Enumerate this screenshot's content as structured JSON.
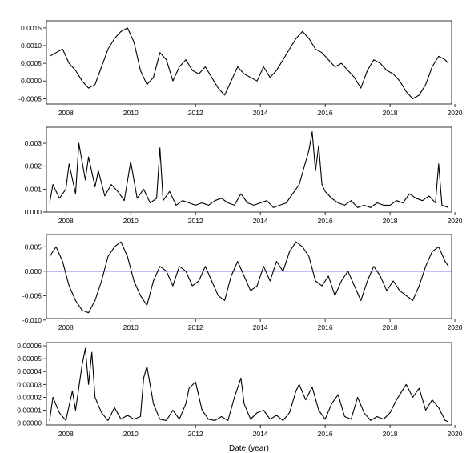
{
  "chart_data": [
    {
      "type": "line",
      "xlim": [
        2007.4,
        2019.9
      ],
      "ylim": [
        -0.00065,
        0.0017
      ],
      "x_ticks": [
        "2008",
        "2010",
        "2012",
        "2014",
        "2016",
        "2018",
        "2020"
      ],
      "y_ticks": [
        "-0.0005",
        "0.0000",
        "0.0005",
        "0.0010",
        "0.0015"
      ],
      "baseline": null,
      "series": [
        {
          "x": [
            2007.5,
            2007.7,
            2007.9,
            2008.1,
            2008.3,
            2008.5,
            2008.7,
            2008.9,
            2009.1,
            2009.3,
            2009.5,
            2009.7,
            2009.9,
            2010.1,
            2010.3,
            2010.5,
            2010.7,
            2010.9,
            2011.1,
            2011.3,
            2011.5,
            2011.7,
            2011.9,
            2012.1,
            2012.3,
            2012.5,
            2012.7,
            2012.9,
            2013.1,
            2013.3,
            2013.5,
            2013.7,
            2013.9,
            2014.1,
            2014.3,
            2014.5,
            2014.7,
            2014.9,
            2015.1,
            2015.3,
            2015.5,
            2015.7,
            2015.9,
            2016.1,
            2016.3,
            2016.5,
            2016.7,
            2016.9,
            2017.1,
            2017.3,
            2017.5,
            2017.7,
            2017.9,
            2018.1,
            2018.3,
            2018.5,
            2018.7,
            2018.9,
            2019.1,
            2019.3,
            2019.5,
            2019.7,
            2019.8
          ],
          "values": [
            0.0007,
            0.0008,
            0.0009,
            0.0005,
            0.0003,
            0.0,
            -0.0002,
            -0.0001,
            0.0004,
            0.0009,
            0.0012,
            0.0014,
            0.0015,
            0.0011,
            0.0003,
            -0.0001,
            0.0001,
            0.0008,
            0.0006,
            0.0,
            0.0004,
            0.0006,
            0.0003,
            0.0002,
            0.0004,
            0.0001,
            -0.0002,
            -0.0004,
            0.0,
            0.0004,
            0.0002,
            0.0001,
            0.0,
            0.0004,
            0.0001,
            0.0003,
            0.0006,
            0.0009,
            0.0012,
            0.0014,
            0.0012,
            0.0009,
            0.0008,
            0.0006,
            0.0004,
            0.0005,
            0.0003,
            0.0001,
            -0.0002,
            0.0003,
            0.0006,
            0.0005,
            0.0003,
            0.0002,
            0.0,
            -0.0003,
            -0.0005,
            -0.0004,
            -0.0001,
            0.0004,
            0.0007,
            0.0006,
            0.0005
          ]
        }
      ]
    },
    {
      "type": "line",
      "xlim": [
        2007.4,
        2019.9
      ],
      "ylim": [
        0.0,
        0.0037
      ],
      "x_ticks": [
        "2008",
        "2010",
        "2012",
        "2014",
        "2016",
        "2018",
        "2020"
      ],
      "y_ticks": [
        "0.000",
        "0.001",
        "0.002",
        "0.003"
      ],
      "baseline": null,
      "series": [
        {
          "x": [
            2007.5,
            2007.6,
            2007.8,
            2008.0,
            2008.1,
            2008.3,
            2008.4,
            2008.6,
            2008.7,
            2008.9,
            2009.0,
            2009.2,
            2009.4,
            2009.6,
            2009.8,
            2010.0,
            2010.2,
            2010.4,
            2010.6,
            2010.8,
            2010.9,
            2011.0,
            2011.2,
            2011.4,
            2011.6,
            2011.8,
            2012.0,
            2012.2,
            2012.4,
            2012.6,
            2012.8,
            2013.0,
            2013.2,
            2013.4,
            2013.6,
            2013.8,
            2014.0,
            2014.2,
            2014.4,
            2014.6,
            2014.8,
            2015.0,
            2015.2,
            2015.4,
            2015.5,
            2015.6,
            2015.7,
            2015.8,
            2015.9,
            2016.0,
            2016.2,
            2016.4,
            2016.6,
            2016.8,
            2017.0,
            2017.2,
            2017.4,
            2017.6,
            2017.8,
            2018.0,
            2018.2,
            2018.4,
            2018.6,
            2018.8,
            2019.0,
            2019.2,
            2019.4,
            2019.5,
            2019.6,
            2019.8
          ],
          "values": [
            0.0004,
            0.0012,
            0.0006,
            0.001,
            0.0021,
            0.0008,
            0.003,
            0.0014,
            0.0024,
            0.0011,
            0.0018,
            0.0007,
            0.0012,
            0.0009,
            0.0005,
            0.0022,
            0.0006,
            0.001,
            0.0004,
            0.0006,
            0.0028,
            0.0005,
            0.0009,
            0.0003,
            0.0005,
            0.0004,
            0.0003,
            0.0004,
            0.0003,
            0.0005,
            0.0006,
            0.0004,
            0.0003,
            0.0008,
            0.0004,
            0.0003,
            0.0004,
            0.0005,
            0.0002,
            0.0003,
            0.0004,
            0.0008,
            0.0012,
            0.0022,
            0.0027,
            0.0035,
            0.0018,
            0.0029,
            0.0012,
            0.0009,
            0.0006,
            0.0004,
            0.0003,
            0.0005,
            0.0002,
            0.0003,
            0.0002,
            0.0004,
            0.0003,
            0.0003,
            0.0005,
            0.0004,
            0.0008,
            0.0006,
            0.0005,
            0.0007,
            0.0004,
            0.0021,
            0.0003,
            0.0002
          ]
        }
      ]
    },
    {
      "type": "line",
      "xlim": [
        2007.4,
        2019.9
      ],
      "ylim": [
        -0.0097,
        0.0075
      ],
      "x_ticks": [
        "2008",
        "2010",
        "2012",
        "2014",
        "2016",
        "2018",
        "2020"
      ],
      "y_ticks": [
        "-0.010",
        "-0.005",
        "0.000",
        "0.005"
      ],
      "baseline": 0.0,
      "baseline_color": "#0000cc",
      "series": [
        {
          "x": [
            2007.5,
            2007.7,
            2007.9,
            2008.1,
            2008.3,
            2008.5,
            2008.7,
            2008.9,
            2009.1,
            2009.3,
            2009.5,
            2009.7,
            2009.9,
            2010.1,
            2010.3,
            2010.5,
            2010.7,
            2010.9,
            2011.1,
            2011.3,
            2011.5,
            2011.7,
            2011.9,
            2012.1,
            2012.3,
            2012.5,
            2012.7,
            2012.9,
            2013.1,
            2013.3,
            2013.5,
            2013.7,
            2013.9,
            2014.1,
            2014.3,
            2014.5,
            2014.7,
            2014.9,
            2015.1,
            2015.3,
            2015.5,
            2015.7,
            2015.9,
            2016.1,
            2016.3,
            2016.5,
            2016.7,
            2016.9,
            2017.1,
            2017.3,
            2017.5,
            2017.7,
            2017.9,
            2018.1,
            2018.3,
            2018.5,
            2018.7,
            2018.9,
            2019.1,
            2019.3,
            2019.5,
            2019.7,
            2019.8
          ],
          "values": [
            0.003,
            0.005,
            0.002,
            -0.003,
            -0.006,
            -0.008,
            -0.0085,
            -0.006,
            -0.002,
            0.003,
            0.005,
            0.006,
            0.003,
            -0.002,
            -0.005,
            -0.007,
            -0.002,
            0.001,
            0.0,
            -0.003,
            0.001,
            0.0,
            -0.003,
            -0.002,
            0.001,
            -0.002,
            -0.005,
            -0.006,
            -0.001,
            0.002,
            -0.001,
            -0.004,
            -0.003,
            0.001,
            -0.002,
            0.002,
            0.0,
            0.004,
            0.006,
            0.005,
            0.003,
            -0.002,
            -0.003,
            -0.001,
            -0.005,
            -0.002,
            0.0,
            -0.003,
            -0.006,
            -0.002,
            0.001,
            -0.001,
            -0.004,
            -0.002,
            -0.004,
            -0.005,
            -0.006,
            -0.003,
            0.001,
            0.004,
            0.005,
            0.002,
            0.001
          ]
        }
      ]
    },
    {
      "type": "line",
      "xlim": [
        2007.4,
        2019.9
      ],
      "ylim": [
        -1.5e-06,
        6.25e-05
      ],
      "x_ticks": [
        "2008",
        "2010",
        "2012",
        "2014",
        "2016",
        "2018",
        "2020"
      ],
      "y_ticks": [
        "0.00000",
        "0.00001",
        "0.00002",
        "0.00003",
        "0.00004",
        "0.00005",
        "0.00006"
      ],
      "baseline": null,
      "xlabel": "Date (year)",
      "series": [
        {
          "x": [
            2007.5,
            2007.6,
            2007.8,
            2008.0,
            2008.2,
            2008.3,
            2008.5,
            2008.6,
            2008.7,
            2008.8,
            2008.9,
            2009.1,
            2009.3,
            2009.5,
            2009.7,
            2009.9,
            2010.1,
            2010.3,
            2010.4,
            2010.5,
            2010.7,
            2010.9,
            2011.1,
            2011.3,
            2011.5,
            2011.7,
            2011.8,
            2012.0,
            2012.2,
            2012.4,
            2012.6,
            2012.8,
            2013.0,
            2013.2,
            2013.4,
            2013.5,
            2013.7,
            2013.9,
            2014.1,
            2014.3,
            2014.5,
            2014.7,
            2014.9,
            2015.1,
            2015.2,
            2015.4,
            2015.6,
            2015.8,
            2016.0,
            2016.2,
            2016.4,
            2016.6,
            2016.8,
            2017.0,
            2017.2,
            2017.4,
            2017.6,
            2017.8,
            2018.0,
            2018.2,
            2018.4,
            2018.5,
            2018.7,
            2018.9,
            2019.1,
            2019.3,
            2019.5,
            2019.7,
            2019.8
          ],
          "values": [
            2e-06,
            2e-05,
            8e-06,
            2e-06,
            2.5e-05,
            1e-05,
            4.5e-05,
            5.8e-05,
            3e-05,
            5.5e-05,
            2e-05,
            8e-06,
            2e-06,
            1.2e-05,
            3e-06,
            6e-06,
            3e-06,
            5e-06,
            3.5e-05,
            4.4e-05,
            1.5e-05,
            3e-06,
            2e-06,
            1e-05,
            3e-06,
            1.5e-05,
            2.7e-05,
            3.2e-05,
            1e-05,
            3e-06,
            2e-06,
            5e-06,
            2e-06,
            2e-05,
            3.5e-05,
            1.5e-05,
            3e-06,
            8e-06,
            1e-05,
            3e-06,
            6e-06,
            2e-06,
            8e-06,
            2.5e-05,
            3e-05,
            1.8e-05,
            2.8e-05,
            1e-05,
            3e-06,
            1.5e-05,
            2.2e-05,
            5e-06,
            3e-06,
            2e-05,
            8e-06,
            2e-06,
            5e-06,
            3e-06,
            8e-06,
            1.8e-05,
            2.6e-05,
            3e-05,
            2e-05,
            2.7e-05,
            1e-05,
            1.8e-05,
            1.2e-05,
            2e-06,
            1e-06
          ]
        }
      ]
    }
  ]
}
